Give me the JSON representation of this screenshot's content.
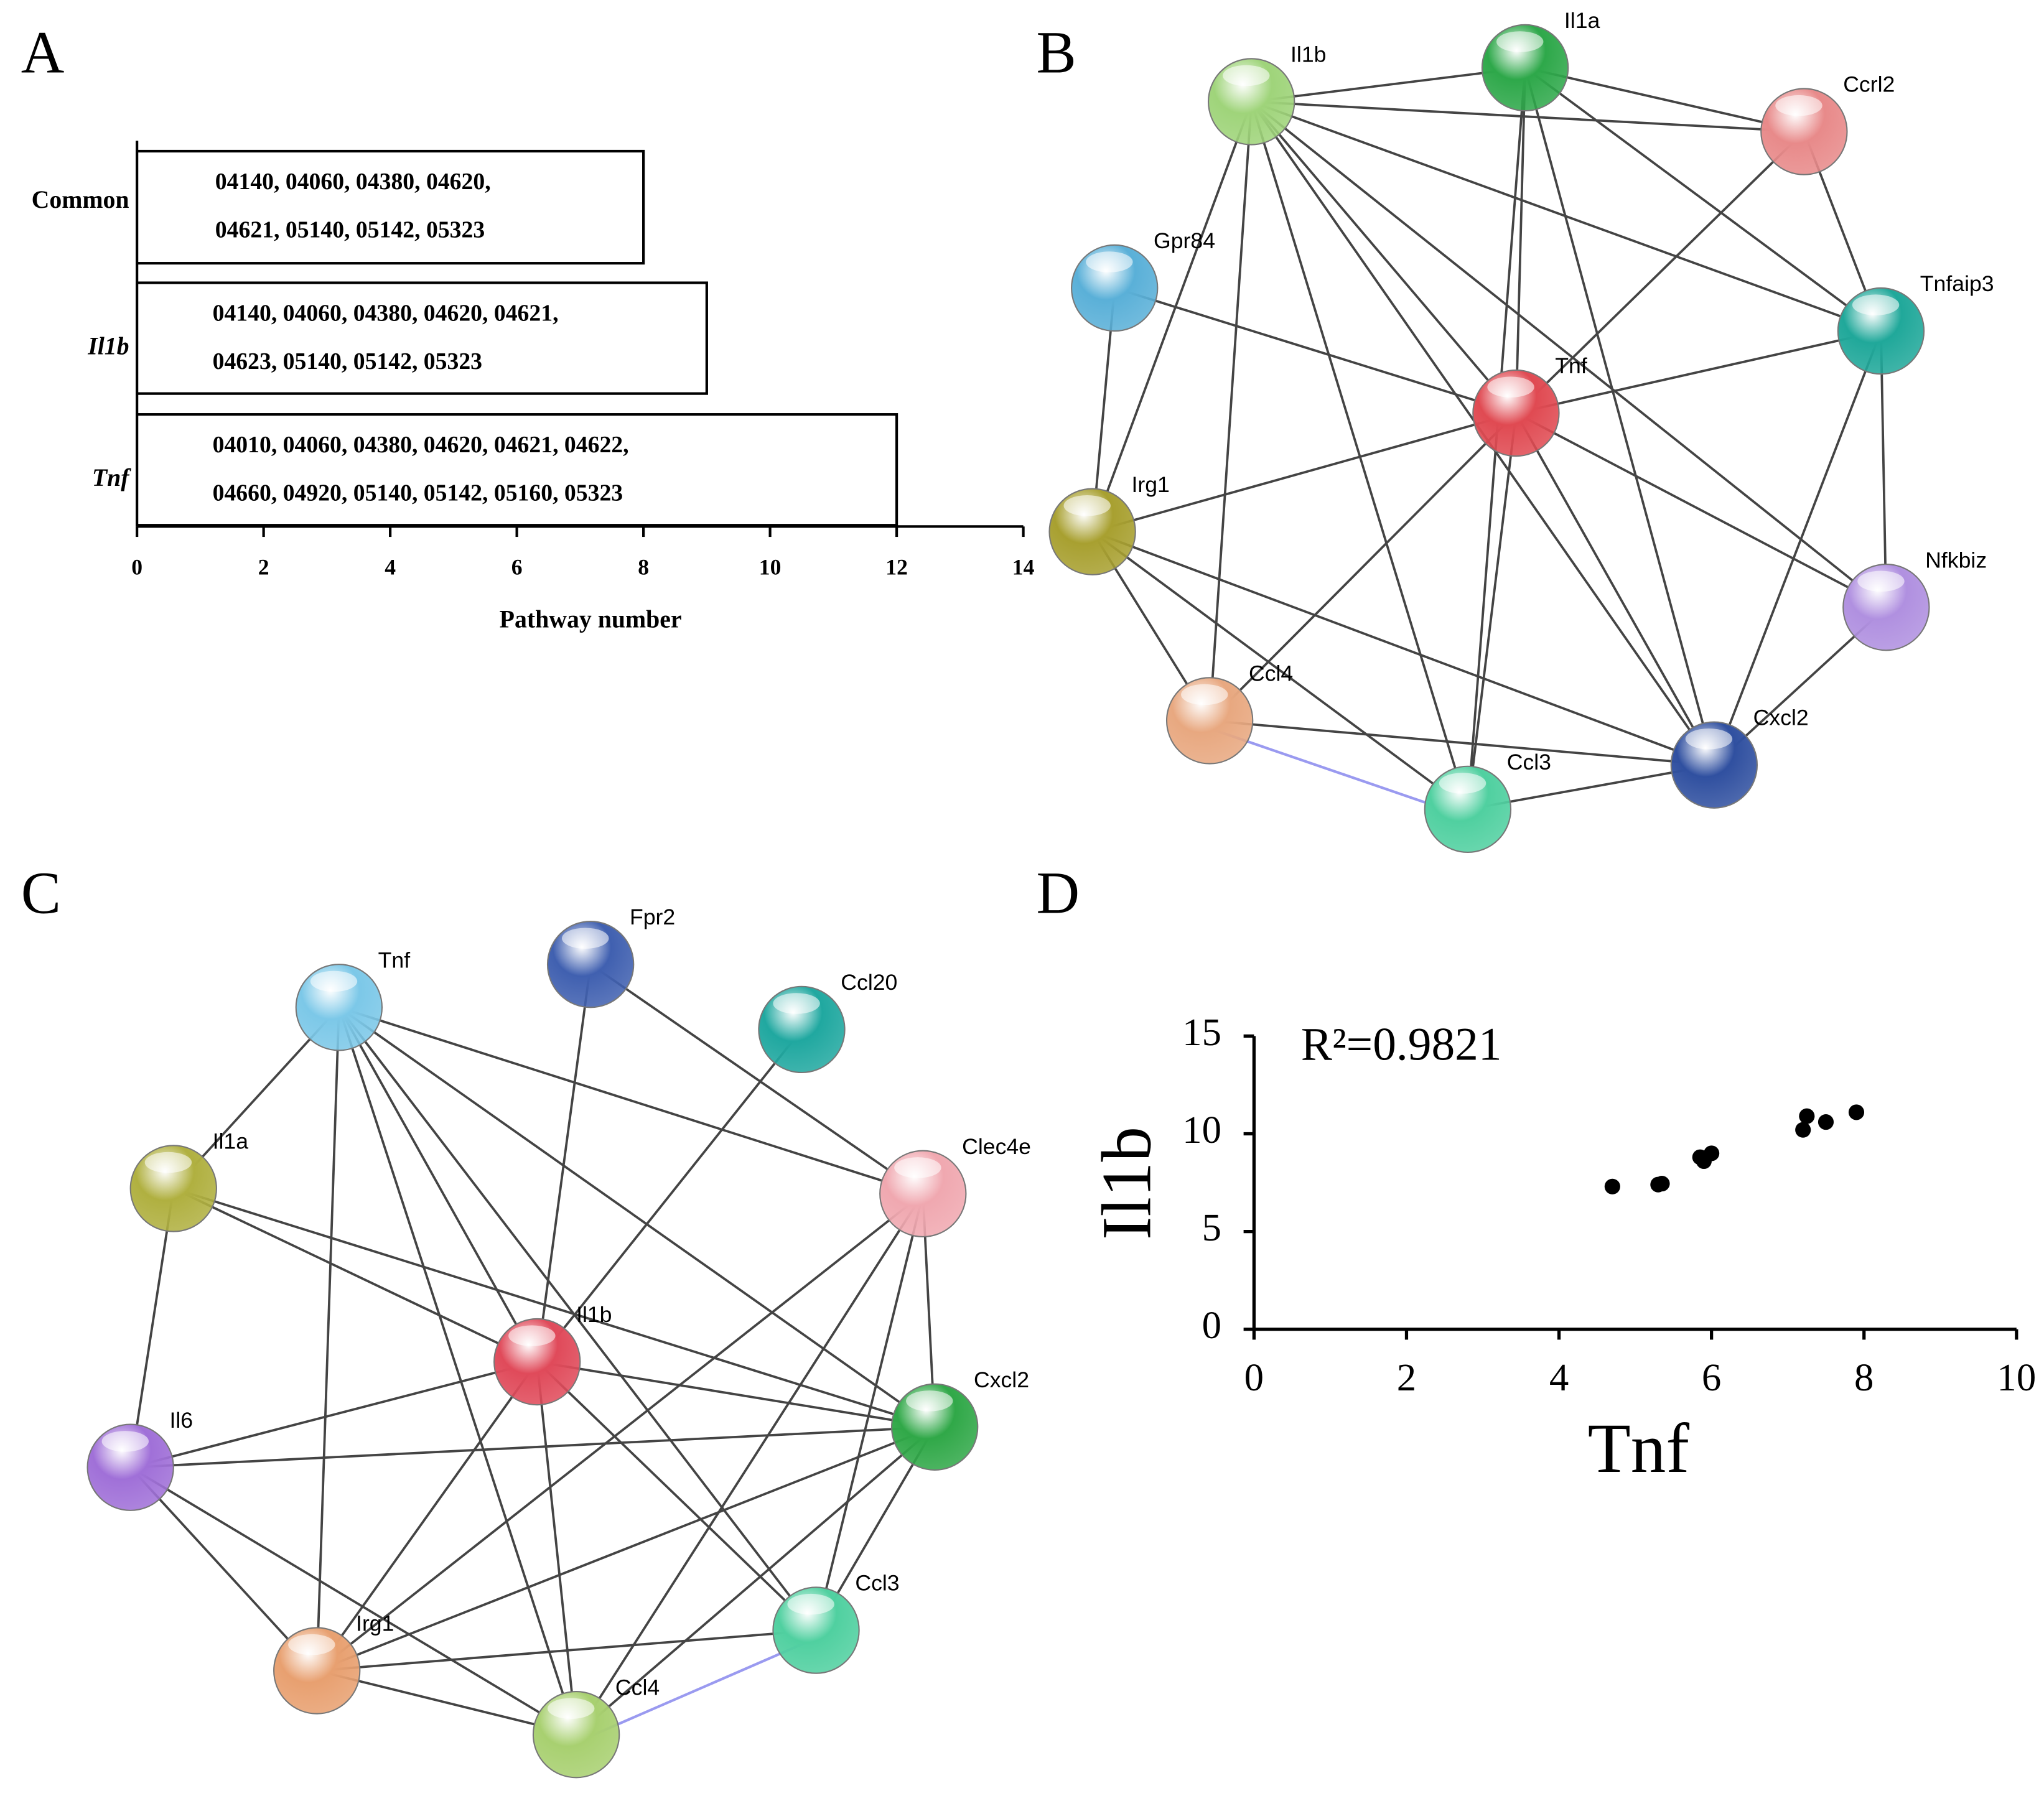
{
  "chart_data": [
    {
      "type": "hbar",
      "panel": "A",
      "categories": [
        "Common",
        "Il1b",
        "Tnf"
      ],
      "values": [
        8,
        9,
        12
      ],
      "bar_labels": [
        [
          "04140, 04060, 04380, 04620,",
          "04621, 05140, 05142, 05323"
        ],
        [
          "04140, 04060, 04380, 04620, 04621,",
          "04623, 05140, 05142, 05323"
        ],
        [
          "04010, 04060, 04380, 04620, 04621, 04622,",
          "04660, 04920, 05140, 05142, 05160, 05323"
        ]
      ],
      "xlabel": "Pathway number",
      "xlim": [
        0,
        14
      ],
      "xticks": [
        0,
        2,
        4,
        6,
        8,
        10,
        12,
        14
      ],
      "color": "#ffffff"
    },
    {
      "type": "network",
      "panel": "B",
      "nodes": [
        {
          "label": "Il1b",
          "color": "#9fd47a"
        },
        {
          "label": "Il1a",
          "color": "#2ea84a"
        },
        {
          "label": "Ccrl2",
          "color": "#e88a8a"
        },
        {
          "label": "Tnfaip3",
          "color": "#20a89a"
        },
        {
          "label": "Tnf",
          "color": "#e04a52"
        },
        {
          "label": "Gpr84",
          "color": "#5ab0d8"
        },
        {
          "label": "Irg1",
          "color": "#a8a030"
        },
        {
          "label": "Nfkbiz",
          "color": "#b090e0"
        },
        {
          "label": "Ccl4",
          "color": "#e8a880"
        },
        {
          "label": "Cxcl2",
          "color": "#3050a0"
        },
        {
          "label": "Ccl3",
          "color": "#50d0a0"
        }
      ]
    },
    {
      "type": "network",
      "panel": "C",
      "nodes": [
        {
          "label": "Tnf",
          "color": "#7cc8e8"
        },
        {
          "label": "Fpr2",
          "color": "#4060b0"
        },
        {
          "label": "Ccl20",
          "color": "#20a8a0"
        },
        {
          "label": "Il1a",
          "color": "#b0b040"
        },
        {
          "label": "Clec4e",
          "color": "#f0a8b0"
        },
        {
          "label": "Il1b",
          "color": "#e04a5a"
        },
        {
          "label": "Cxcl2",
          "color": "#30a848"
        },
        {
          "label": "Il6",
          "color": "#a070d8"
        },
        {
          "label": "Ccl3",
          "color": "#50d0a0"
        },
        {
          "label": "Irg1",
          "color": "#e8a070"
        },
        {
          "label": "Ccl4",
          "color": "#a8d070"
        }
      ]
    },
    {
      "type": "scatter",
      "panel": "D",
      "annotation": "R²=0.9821",
      "xlabel": "Tnf",
      "ylabel": "Il1b",
      "x": [
        4.7,
        5.3,
        5.35,
        5.85,
        5.9,
        6.0,
        7.2,
        7.25,
        7.5,
        7.9
      ],
      "y": [
        7.3,
        7.4,
        7.45,
        8.8,
        8.6,
        9.0,
        10.2,
        10.9,
        10.6,
        11.1
      ],
      "xlim": [
        0,
        10
      ],
      "xticks": [
        0,
        2,
        4,
        6,
        8,
        10
      ],
      "ylim": [
        0,
        15
      ],
      "yticks": [
        0,
        5,
        10,
        15
      ],
      "color": "#000000"
    }
  ]
}
